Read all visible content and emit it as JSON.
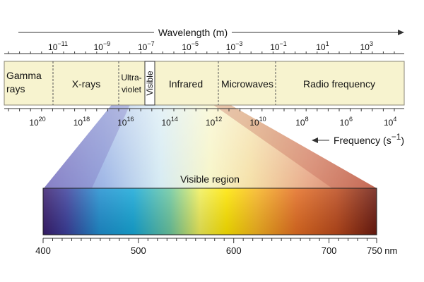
{
  "wavelength": {
    "title": "Wavelength (m)",
    "ticks": [
      {
        "base": "10",
        "exp": "−11"
      },
      {
        "base": "10",
        "exp": "−9"
      },
      {
        "base": "10",
        "exp": "−7"
      },
      {
        "base": "10",
        "exp": "−5"
      },
      {
        "base": "10",
        "exp": "−3"
      },
      {
        "base": "10",
        "exp": "−1"
      },
      {
        "base": "10",
        "exp": "1"
      },
      {
        "base": "10",
        "exp": "3"
      }
    ]
  },
  "bands": {
    "gamma_line1": "Gamma",
    "gamma_line2": "rays",
    "xrays": "X-rays",
    "uv_line1": "Ultra-",
    "uv_line2": "violet",
    "visible": "Visible",
    "infrared": "Infrared",
    "microwaves": "Microwaves",
    "radio": "Radio frequency"
  },
  "frequency": {
    "title": "Frequency (s",
    "title_exp": "−1",
    "title_close": ")",
    "ticks": [
      {
        "base": "10",
        "exp": "20"
      },
      {
        "base": "10",
        "exp": "18"
      },
      {
        "base": "10",
        "exp": "16"
      },
      {
        "base": "10",
        "exp": "14"
      },
      {
        "base": "10",
        "exp": "12"
      },
      {
        "base": "10",
        "exp": "10"
      },
      {
        "base": "10",
        "exp": "8"
      },
      {
        "base": "10",
        "exp": "6"
      },
      {
        "base": "10",
        "exp": "4"
      }
    ]
  },
  "visible_region": {
    "title": "Visible region",
    "ticks": [
      "400",
      "500",
      "600",
      "700",
      "750 nm"
    ],
    "tick_values_nm": [
      400,
      500,
      600,
      700,
      750
    ]
  },
  "colors": {
    "band_fill": "#f7f3cf",
    "axis": "#333333"
  }
}
